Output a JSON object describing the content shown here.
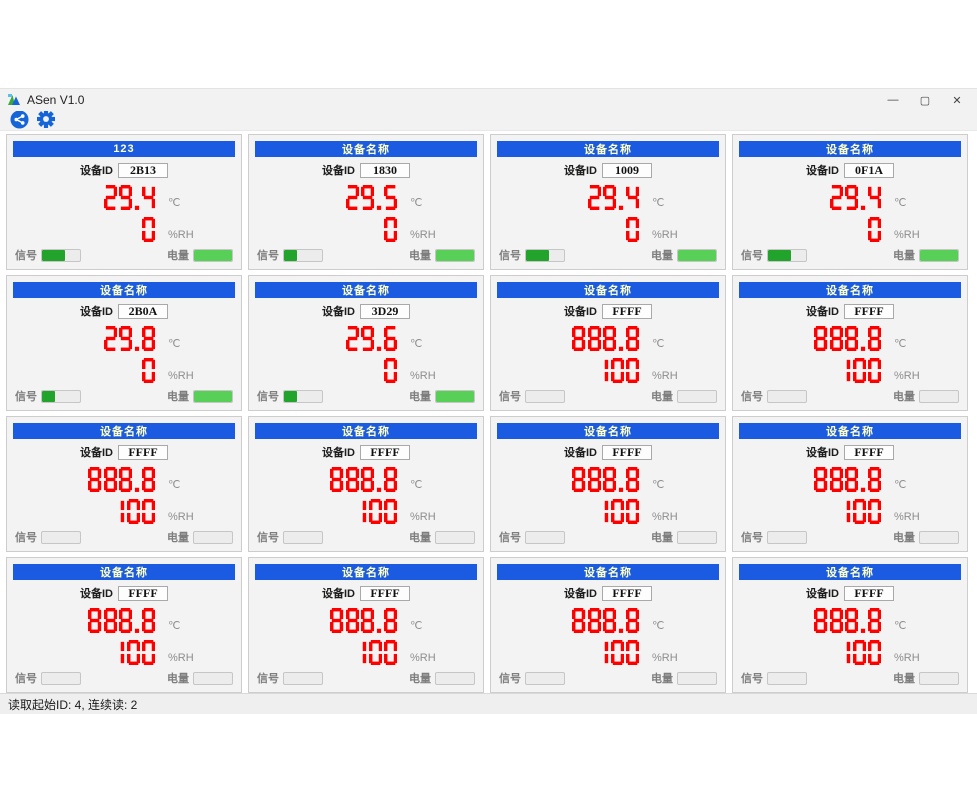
{
  "window": {
    "title": "ASen V1.0",
    "controls": {
      "minimize": "—",
      "maximize": "▢",
      "close": "✕"
    }
  },
  "toolbar": {
    "icons": [
      "share-icon",
      "settings-gear-icon"
    ]
  },
  "labels": {
    "device_id": "设备ID",
    "signal": "信号",
    "battery": "电量",
    "temp_unit": "℃",
    "humidity_unit": "%RH"
  },
  "colors": {
    "header_blue": "#1a5be2",
    "digit_red": "#ff0000",
    "signal_fill": "#22a42c",
    "battery_fill": "#58d058",
    "icon_blue": "#1565d8"
  },
  "cards": [
    {
      "name": "123",
      "id": "2B13",
      "temp": "29.4",
      "humidity": "0",
      "signal_pct": 60,
      "battery_pct": 100
    },
    {
      "name": "设备名称",
      "id": "1830",
      "temp": "29.5",
      "humidity": "0",
      "signal_pct": 35,
      "battery_pct": 100
    },
    {
      "name": "设备名称",
      "id": "1009",
      "temp": "29.4",
      "humidity": "0",
      "signal_pct": 60,
      "battery_pct": 100
    },
    {
      "name": "设备名称",
      "id": "0F1A",
      "temp": "29.4",
      "humidity": "0",
      "signal_pct": 60,
      "battery_pct": 100
    },
    {
      "name": "设备名称",
      "id": "2B0A",
      "temp": "29.8",
      "humidity": "0",
      "signal_pct": 35,
      "battery_pct": 100
    },
    {
      "name": "设备名称",
      "id": "3D29",
      "temp": "29.6",
      "humidity": "0",
      "signal_pct": 35,
      "battery_pct": 100
    },
    {
      "name": "设备名称",
      "id": "FFFF",
      "temp": "888.8",
      "humidity": "100",
      "signal_pct": 0,
      "battery_pct": 0
    },
    {
      "name": "设备名称",
      "id": "FFFF",
      "temp": "888.8",
      "humidity": "100",
      "signal_pct": 0,
      "battery_pct": 0
    },
    {
      "name": "设备名称",
      "id": "FFFF",
      "temp": "888.8",
      "humidity": "100",
      "signal_pct": 0,
      "battery_pct": 0
    },
    {
      "name": "设备名称",
      "id": "FFFF",
      "temp": "888.8",
      "humidity": "100",
      "signal_pct": 0,
      "battery_pct": 0
    },
    {
      "name": "设备名称",
      "id": "FFFF",
      "temp": "888.8",
      "humidity": "100",
      "signal_pct": 0,
      "battery_pct": 0
    },
    {
      "name": "设备名称",
      "id": "FFFF",
      "temp": "888.8",
      "humidity": "100",
      "signal_pct": 0,
      "battery_pct": 0
    },
    {
      "name": "设备名称",
      "id": "FFFF",
      "temp": "888.8",
      "humidity": "100",
      "signal_pct": 0,
      "battery_pct": 0
    },
    {
      "name": "设备名称",
      "id": "FFFF",
      "temp": "888.8",
      "humidity": "100",
      "signal_pct": 0,
      "battery_pct": 0
    },
    {
      "name": "设备名称",
      "id": "FFFF",
      "temp": "888.8",
      "humidity": "100",
      "signal_pct": 0,
      "battery_pct": 0
    },
    {
      "name": "设备名称",
      "id": "FFFF",
      "temp": "888.8",
      "humidity": "100",
      "signal_pct": 0,
      "battery_pct": 0
    }
  ],
  "status_bar": {
    "text": "读取起始ID: 4, 连续读:  2"
  }
}
